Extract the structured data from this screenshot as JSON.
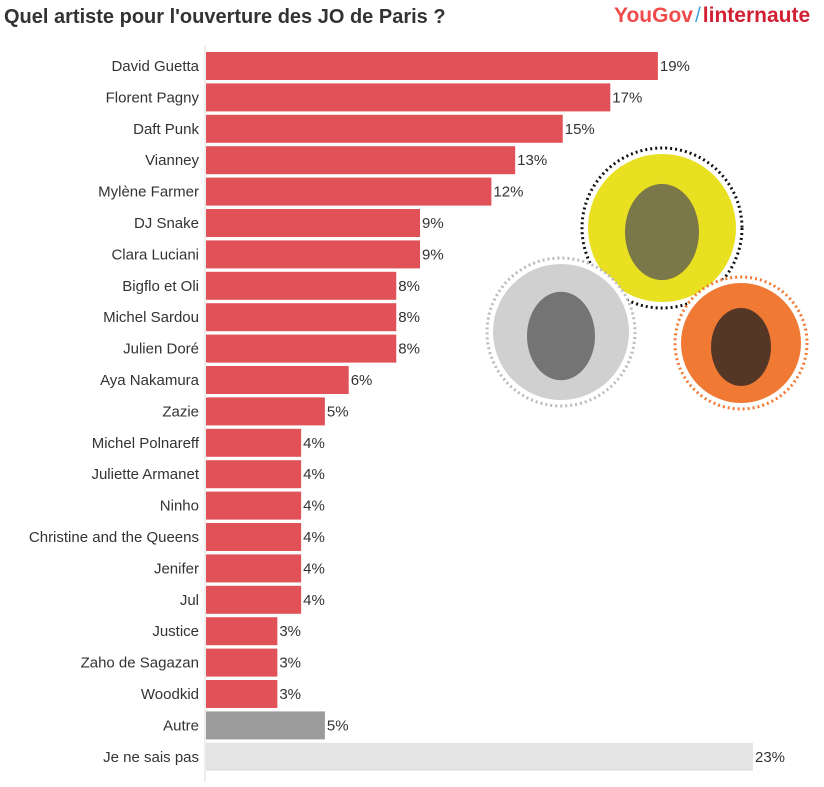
{
  "title": "Quel artiste pour l'ouverture des JO de Paris ?",
  "logos": {
    "left": "YouGov",
    "right": "linternaute"
  },
  "chart_data": {
    "type": "bar",
    "orientation": "horizontal",
    "title": "Quel artiste pour l'ouverture des JO de Paris ?",
    "categories": [
      "David Guetta",
      "Florent Pagny",
      "Daft Punk",
      "Vianney",
      "Mylène Farmer",
      "DJ Snake",
      "Clara Luciani",
      "Bigflo et Oli",
      "Michel Sardou",
      "Julien Doré",
      "Aya Nakamura",
      "Zazie",
      "Michel Polnareff",
      "Juliette Armanet",
      "Ninho",
      "Christine and the Queens",
      "Jenifer",
      "Jul",
      "Justice",
      "Zaho de Sagazan",
      "Woodkid",
      "Autre",
      "Je ne sais pas"
    ],
    "values": [
      19,
      17,
      15,
      13,
      12,
      9,
      9,
      8,
      8,
      8,
      6,
      5,
      4,
      4,
      4,
      4,
      4,
      4,
      3,
      3,
      3,
      5,
      23
    ],
    "unit": "%",
    "colors": {
      "artist": "#e05257",
      "Autre": "#9b9b9b",
      "Je ne sais pas": "#e4e4e4"
    },
    "xlim": [
      0,
      23
    ],
    "grid": false,
    "legend": "none"
  },
  "photos": [
    {
      "subject": "david-guetta",
      "color": "#e8e020"
    },
    {
      "subject": "florent-pagny",
      "color": "#d0d0d0"
    },
    {
      "subject": "daft-punk",
      "color": "#f07a33"
    }
  ]
}
